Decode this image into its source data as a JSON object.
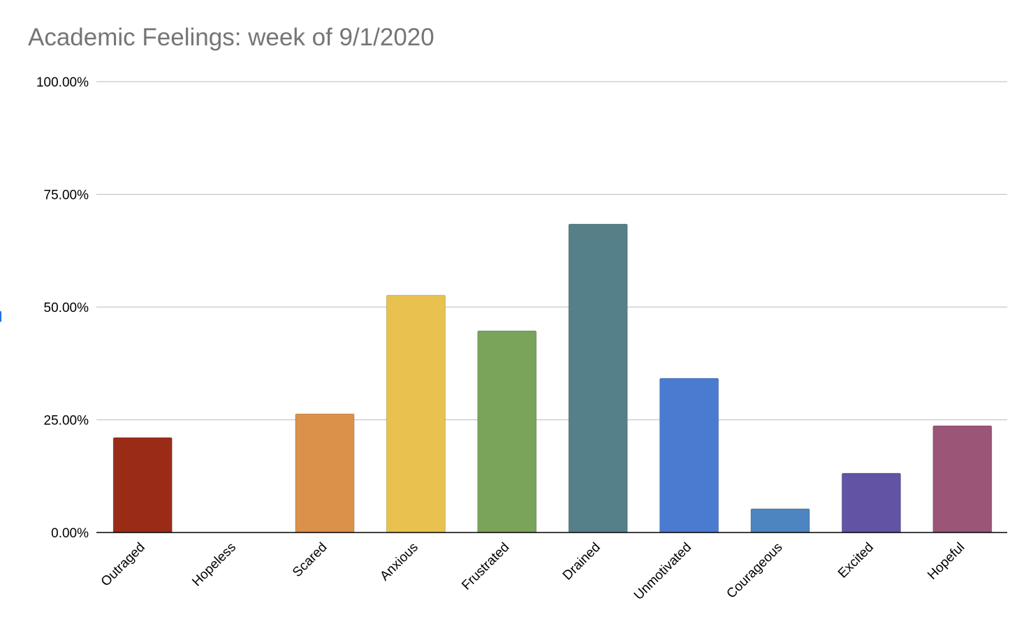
{
  "chart_data": {
    "type": "bar",
    "title": "Academic Feelings: week of 9/1/2020",
    "xlabel": "",
    "ylabel": "",
    "categories": [
      "Outraged",
      "Hopeless",
      "Scared",
      "Anxious",
      "Frustrated",
      "Drained",
      "Unmotivated",
      "Courageous",
      "Excited",
      "Hopeful"
    ],
    "values": [
      21.05,
      0,
      26.32,
      52.63,
      44.74,
      68.42,
      34.21,
      5.26,
      13.16,
      23.68
    ],
    "colors": [
      "#9a2c17",
      "#e69a48",
      "#db9149",
      "#e8c14f",
      "#79a459",
      "#558089",
      "#4a7bd1",
      "#4d85c1",
      "#6353a4",
      "#9a5577"
    ],
    "ylim": [
      0,
      100
    ],
    "yticks": [
      0,
      25,
      50,
      75,
      100
    ],
    "ytick_labels": [
      "0.00%",
      "25.00%",
      "50.00%",
      "75.00%",
      "100.00%"
    ],
    "grid": true,
    "legend": "none",
    "gridline_color": "#c6c6c6",
    "axis_color": "#000000"
  }
}
